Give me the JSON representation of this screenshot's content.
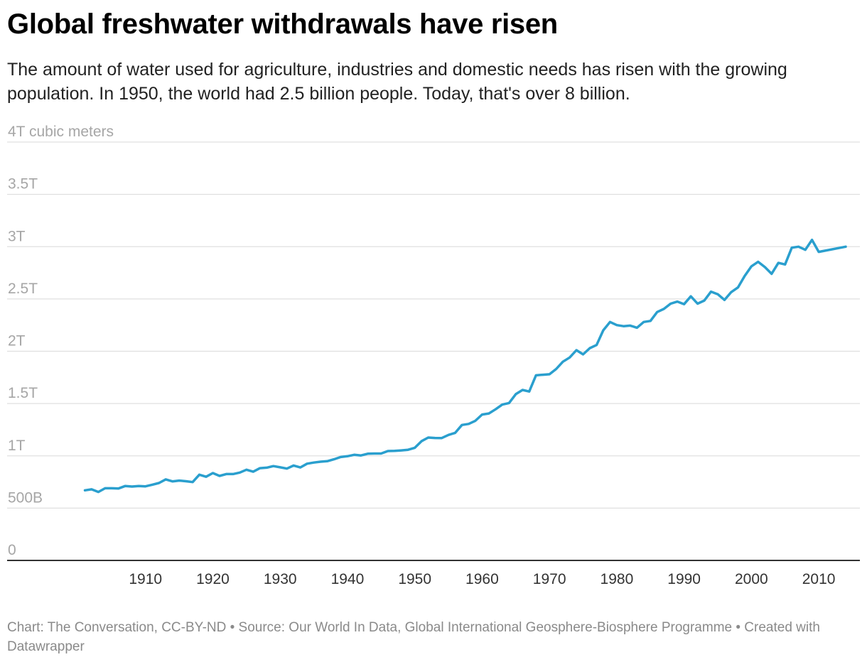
{
  "title": "Global freshwater withdrawals have risen",
  "subtitle": "The amount of water used for agriculture, industries and domestic needs has risen with the growing population. In 1950, the world had 2.5 billion people. Today, that's over 8 billion.",
  "footer": "Chart: The Conversation, CC-BY-ND • Source: Our World In Data, Global International Geosphere-Biosphere Programme • Created with Datawrapper",
  "colors": {
    "line": "#2a9fce",
    "grid": "#e0e0e0",
    "axis": "#333333",
    "tick_text": "#a6a6a6"
  },
  "chart_data": {
    "type": "line",
    "title": "Global freshwater withdrawals have risen",
    "ylim": [
      0,
      4000
    ],
    "xlim": [
      1900,
      2014
    ],
    "grid": true,
    "y_ticks": [
      {
        "value": 0,
        "label": "0"
      },
      {
        "value": 500,
        "label": "500B"
      },
      {
        "value": 1000,
        "label": "1T"
      },
      {
        "value": 1500,
        "label": "1.5T"
      },
      {
        "value": 2000,
        "label": "2T"
      },
      {
        "value": 2500,
        "label": "2.5T"
      },
      {
        "value": 3000,
        "label": "3T"
      },
      {
        "value": 3500,
        "label": "3.5T"
      },
      {
        "value": 4000,
        "label": "4T cubic meters"
      }
    ],
    "x_ticks": [
      {
        "value": 1910,
        "label": "1910"
      },
      {
        "value": 1920,
        "label": "1920"
      },
      {
        "value": 1930,
        "label": "1930"
      },
      {
        "value": 1940,
        "label": "1940"
      },
      {
        "value": 1950,
        "label": "1950"
      },
      {
        "value": 1960,
        "label": "1960"
      },
      {
        "value": 1970,
        "label": "1970"
      },
      {
        "value": 1980,
        "label": "1980"
      },
      {
        "value": 1990,
        "label": "1990"
      },
      {
        "value": 2000,
        "label": "2000"
      },
      {
        "value": 2010,
        "label": "2010"
      }
    ],
    "series": [
      {
        "x": [
          1901,
          1902,
          1903,
          1904,
          1905,
          1906,
          1907,
          1908,
          1909,
          1910,
          1911,
          1912,
          1913,
          1914,
          1915,
          1916,
          1917,
          1918,
          1919,
          1920,
          1921,
          1922,
          1923,
          1924,
          1925,
          1926,
          1927,
          1928,
          1929,
          1930,
          1931,
          1932,
          1933,
          1934,
          1935,
          1936,
          1937,
          1938,
          1939,
          1940,
          1941,
          1942,
          1943,
          1944,
          1945,
          1946,
          1947,
          1948,
          1949,
          1950,
          1951,
          1952,
          1953,
          1954,
          1955,
          1956,
          1957,
          1958,
          1959,
          1960,
          1961,
          1962,
          1963,
          1964,
          1965,
          1966,
          1967,
          1968,
          1969,
          1970,
          1971,
          1972,
          1973,
          1974,
          1975,
          1976,
          1977,
          1978,
          1979,
          1980,
          1981,
          1982,
          1983,
          1984,
          1985,
          1986,
          1987,
          1988,
          1989,
          1990,
          1991,
          1992,
          1993,
          1994,
          1995,
          1996,
          1997,
          1998,
          1999,
          2000,
          2001,
          2002,
          2003,
          2004,
          2005,
          2006,
          2007,
          2008,
          2009,
          2010,
          2014
        ],
        "y": [
          670,
          680,
          655,
          690,
          690,
          688,
          712,
          706,
          712,
          708,
          724,
          740,
          775,
          756,
          763,
          757,
          749,
          820,
          800,
          835,
          808,
          826,
          826,
          840,
          867,
          848,
          882,
          887,
          902,
          890,
          878,
          907,
          889,
          925,
          936,
          944,
          949,
          967,
          989,
          996,
          1010,
          1004,
          1020,
          1022,
          1022,
          1046,
          1047,
          1052,
          1058,
          1077,
          1140,
          1175,
          1171,
          1170,
          1200,
          1220,
          1295,
          1305,
          1335,
          1395,
          1405,
          1445,
          1490,
          1505,
          1590,
          1630,
          1615,
          1770,
          1775,
          1780,
          1830,
          1900,
          1940,
          2010,
          1970,
          2030,
          2060,
          2200,
          2280,
          2250,
          2240,
          2245,
          2225,
          2280,
          2290,
          2375,
          2405,
          2455,
          2475,
          2450,
          2525,
          2455,
          2485,
          2570,
          2545,
          2490,
          2565,
          2610,
          2720,
          2812,
          2855,
          2805,
          2740,
          2845,
          2830,
          2990,
          3000,
          2970,
          3065,
          2950,
          3000
        ]
      }
    ]
  }
}
